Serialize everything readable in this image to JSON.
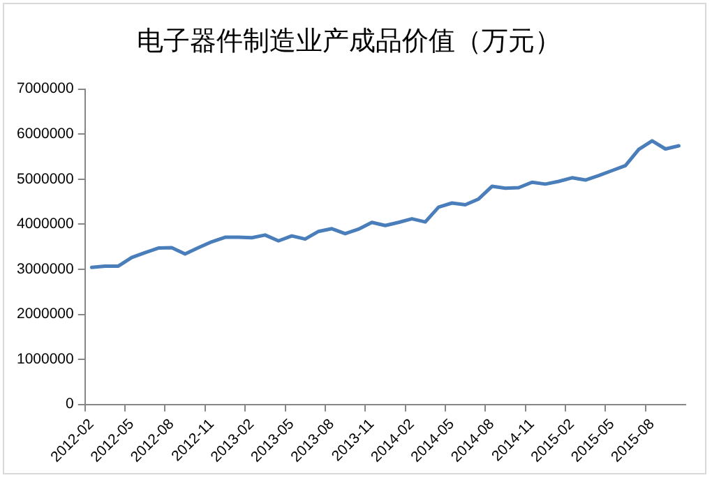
{
  "chart_data": {
    "type": "line",
    "title": "电子器件制造业产成品价值（万元）",
    "categories": [
      "2012-02",
      null,
      null,
      "2012-05",
      null,
      null,
      "2012-08",
      null,
      null,
      "2012-11",
      null,
      null,
      "2013-02",
      null,
      null,
      "2013-05",
      null,
      null,
      "2013-08",
      null,
      null,
      "2013-11",
      null,
      null,
      "2014-02",
      null,
      null,
      "2014-05",
      null,
      null,
      "2014-08",
      null,
      null,
      "2014-11",
      null,
      null,
      "2015-02",
      null,
      null,
      "2015-05",
      null,
      null,
      "2015-08",
      null,
      null
    ],
    "series": [
      {
        "color": "#4a7ebb",
        "values": [
          3040000,
          3070000,
          3070000,
          3260000,
          3370000,
          3470000,
          3480000,
          3340000,
          3480000,
          3610000,
          3710000,
          3710000,
          3700000,
          3760000,
          3630000,
          3740000,
          3670000,
          3840000,
          3900000,
          3790000,
          3890000,
          4040000,
          3970000,
          4040000,
          4120000,
          4050000,
          4380000,
          4470000,
          4430000,
          4560000,
          4840000,
          4800000,
          4810000,
          4930000,
          4890000,
          4950000,
          5030000,
          4980000,
          5080000,
          5190000,
          5300000,
          5660000,
          5850000,
          5670000,
          5740000
        ]
      }
    ],
    "ylim": [
      0,
      7000000
    ],
    "yticks": [
      0,
      1000000,
      2000000,
      3000000,
      4000000,
      5000000,
      6000000,
      7000000
    ],
    "grid": false,
    "legend": false,
    "marker": "none",
    "line_style": "solid"
  }
}
